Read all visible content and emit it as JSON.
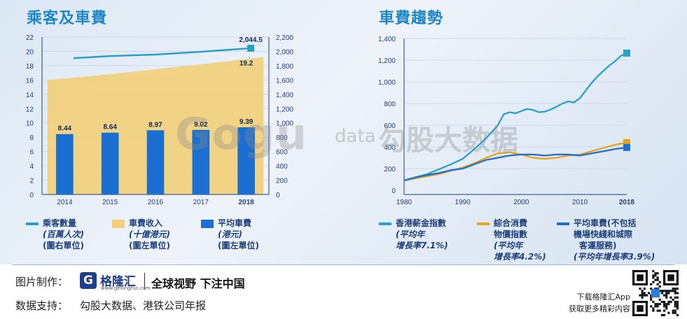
{
  "left_chart": {
    "title": "乘客及車費",
    "chart_data": {
      "type": "bar",
      "categories": [
        "2014",
        "2015",
        "2016",
        "2017",
        "2018"
      ],
      "bars": {
        "name": "平均車費",
        "values": [
          8.44,
          8.64,
          8.97,
          9.02,
          9.39
        ],
        "labels": [
          "8.44",
          "8.64",
          "8.97",
          "9.02",
          "9.39"
        ],
        "color": "#1a6fd0"
      },
      "area": {
        "name": "車費收入",
        "values": [
          16.0,
          16.8,
          17.5,
          18.2,
          19.2
        ],
        "end_label": "19.2",
        "color": "#f2cf78"
      },
      "line": {
        "name": "乘客數量",
        "values": [
          1905,
          1935,
          1955,
          1995,
          2044.5
        ],
        "end_label": "2,044.5",
        "color": "#2a9fc9"
      },
      "left_axis": {
        "min": 0,
        "max": 22,
        "ticks": [
          "0",
          "2",
          "4",
          "6",
          "8",
          "10",
          "12",
          "14",
          "16",
          "18",
          "20",
          "22"
        ]
      },
      "right_axis": {
        "min": 0,
        "max": 2200,
        "ticks": [
          "0",
          "200",
          "400",
          "600",
          "800",
          "1,000",
          "1,200",
          "1,400",
          "1,600",
          "1,800",
          "2,000",
          "2,200"
        ]
      }
    },
    "legend": [
      {
        "l1": "乘客數量",
        "l2": "(百萬人次)",
        "l3": "(圖右單位)",
        "color": "#2a9fc9",
        "kind": "line"
      },
      {
        "l1": "車費收入",
        "l2": "(十億港元)",
        "l3": "(圖左單位)",
        "color": "#f2cf78",
        "kind": "box"
      },
      {
        "l1": "平均車費",
        "l2": "(港元)",
        "l3": "(圖左單位)",
        "color": "#1a6fd0",
        "kind": "box"
      }
    ]
  },
  "right_chart": {
    "title": "車費趨勢",
    "chart_data": {
      "type": "line",
      "x_ticks": [
        "1980",
        "1990",
        "2000",
        "2010",
        "2018"
      ],
      "x_range": [
        1980,
        2018
      ],
      "y_range": [
        0,
        1400
      ],
      "y_ticks": [
        "0",
        "200",
        "400",
        "600",
        "800",
        "1,000",
        "1,200",
        "1,400"
      ],
      "series": [
        {
          "name": "香港薪金指數",
          "color": "#2a9fc9",
          "x": [
            1980,
            1982,
            1984,
            1986,
            1988,
            1990,
            1992,
            1994,
            1996,
            1997,
            1998,
            1999,
            2000,
            2001,
            2002,
            2003,
            2004,
            2005,
            2006,
            2007,
            2008,
            2009,
            2010,
            2011,
            2012,
            2013,
            2014,
            2015,
            2016,
            2017,
            2018
          ],
          "y": [
            90,
            120,
            150,
            195,
            240,
            290,
            380,
            480,
            600,
            700,
            720,
            710,
            730,
            750,
            740,
            720,
            725,
            745,
            770,
            800,
            820,
            810,
            850,
            920,
            990,
            1050,
            1100,
            1150,
            1190,
            1240,
            1265
          ]
        },
        {
          "name": "綜合消費物價指數",
          "color": "#e9a11b",
          "x": [
            1980,
            1982,
            1984,
            1986,
            1988,
            1990,
            1992,
            1994,
            1996,
            1998,
            2000,
            2002,
            2004,
            2006,
            2008,
            2010,
            2012,
            2014,
            2016,
            2018
          ],
          "y": [
            90,
            110,
            130,
            150,
            180,
            210,
            250,
            300,
            340,
            350,
            330,
            300,
            290,
            300,
            320,
            330,
            360,
            390,
            420,
            440
          ]
        },
        {
          "name": "平均車費",
          "color": "#1a6fd0",
          "x": [
            1980,
            1982,
            1984,
            1986,
            1988,
            1990,
            1992,
            1994,
            1996,
            1998,
            2000,
            2002,
            2004,
            2006,
            2008,
            2010,
            2012,
            2014,
            2016,
            2018
          ],
          "y": [
            90,
            120,
            140,
            160,
            185,
            200,
            240,
            280,
            300,
            320,
            330,
            330,
            320,
            330,
            330,
            320,
            340,
            360,
            380,
            395
          ]
        }
      ]
    },
    "legend": [
      {
        "l1": "香港薪金指數",
        "l2": "(平均年",
        "l3": "增長率7.1%)",
        "color": "#2a9fc9"
      },
      {
        "l1": "綜合消費",
        "l1b": "物價指數",
        "l2": "(平均年",
        "l3": "增長率4.2%)",
        "color": "#e9a11b"
      },
      {
        "l1": "平均車費(不包括",
        "l1b": "機場快綫和城際",
        "l1c": "客運服務)",
        "l3": "(平均年增長率3.9%)",
        "color": "#1a6fd0"
      }
    ]
  },
  "watermark": {
    "g": "Gogu",
    "data": "data",
    "cn": "勾股大数据"
  },
  "footer": {
    "made_by_label": "图片制作：",
    "logo_char": "G",
    "logo_name": "格隆汇",
    "logo_url": "www.gelonghui.com",
    "slogan": "全球视野 下注中国",
    "data_label": "数据支持：",
    "data_sources": "勾股大数据、港铁公司年报",
    "download_line1": "下载格隆汇App",
    "download_line2": "获取更多精彩内容"
  }
}
